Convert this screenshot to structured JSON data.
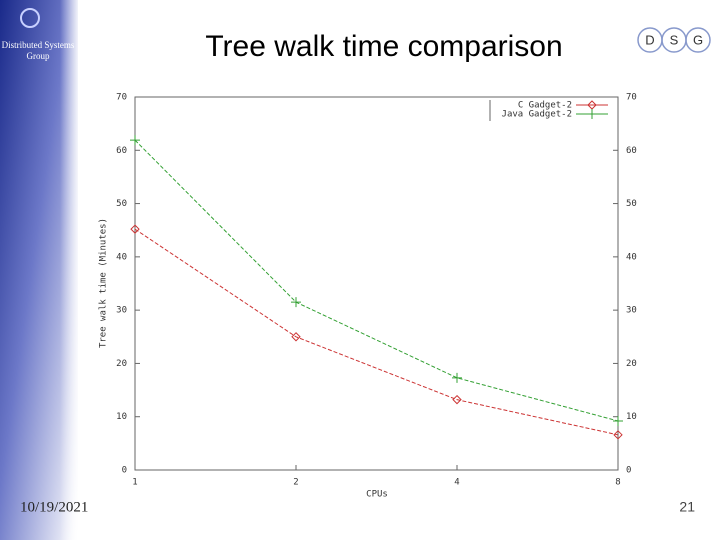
{
  "slide": {
    "sidebar_text": "Distributed Systems Group",
    "logo_letters": [
      "D",
      "S",
      "G"
    ],
    "date": "10/19/2021",
    "page_number": "21"
  },
  "chart_data": {
    "type": "line",
    "title": "Tree walk time comparison",
    "x_label": "CPUs",
    "y_label": "Tree walk time (Minutes)",
    "x": [
      1,
      2,
      4,
      8
    ],
    "xlim": [
      1,
      8
    ],
    "xticks": [
      1,
      2,
      4,
      8
    ],
    "xlog": true,
    "ylim": [
      0,
      70
    ],
    "yticks": [
      0,
      10,
      20,
      30,
      40,
      50,
      60,
      70
    ],
    "y2lim": [
      0,
      70
    ],
    "y2ticks": [
      0,
      10,
      20,
      30,
      40,
      50,
      60,
      70
    ],
    "legend": "upper right",
    "series": [
      {
        "name": "C Gadget-2",
        "color": "#cc3333",
        "marker": "diamond",
        "values": [
          45.2,
          25,
          13.2,
          6.6
        ]
      },
      {
        "name": "Java Gadget-2",
        "color": "#33a033",
        "marker": "plus",
        "values": [
          61.9,
          31.5,
          17.3,
          9.2
        ]
      }
    ]
  }
}
